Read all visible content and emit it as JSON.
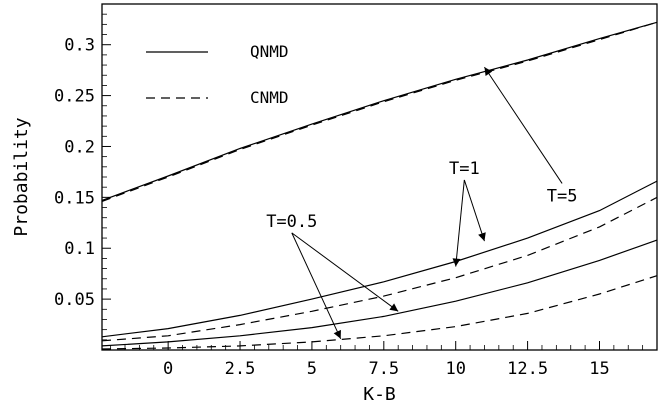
{
  "chart_data": {
    "type": "line",
    "title": "",
    "xlabel": "K-B",
    "ylabel": "Probability",
    "xlim": [
      -2.3,
      17
    ],
    "ylim": [
      0,
      0.34
    ],
    "x_ticks": [
      {
        "value": 0,
        "label": "0"
      },
      {
        "value": 2.5,
        "label": "2.5"
      },
      {
        "value": 5,
        "label": "5"
      },
      {
        "value": 7.5,
        "label": "7.5"
      },
      {
        "value": 10,
        "label": "10"
      },
      {
        "value": 12.5,
        "label": "12.5"
      },
      {
        "value": 15,
        "label": "15"
      }
    ],
    "y_ticks": [
      {
        "value": 0.05,
        "label": "0.05"
      },
      {
        "value": 0.1,
        "label": "0.1"
      },
      {
        "value": 0.15,
        "label": "0.15"
      },
      {
        "value": 0.2,
        "label": "0.2"
      },
      {
        "value": 0.25,
        "label": "0.25"
      },
      {
        "value": 0.3,
        "label": "0.3"
      }
    ],
    "grid": false,
    "legend": {
      "position": "top-left",
      "entries": [
        {
          "label": "QNMD",
          "style": "solid"
        },
        {
          "label": "CNMD",
          "style": "dashed"
        }
      ]
    },
    "series": [
      {
        "model": "QNMD",
        "temperature": "T=5",
        "style": "solid",
        "x": [
          -2.3,
          0,
          2.5,
          5,
          7.5,
          10,
          12.5,
          15,
          17
        ],
        "y": [
          0.147,
          0.171,
          0.198,
          0.222,
          0.245,
          0.266,
          0.285,
          0.306,
          0.322
        ]
      },
      {
        "model": "CNMD",
        "temperature": "T=5",
        "style": "dashed",
        "x": [
          -2.3,
          0,
          2.5,
          5,
          7.5,
          10,
          12.5,
          15,
          17
        ],
        "y": [
          0.146,
          0.17,
          0.197,
          0.221,
          0.244,
          0.265,
          0.284,
          0.305,
          0.322
        ]
      },
      {
        "model": "QNMD",
        "temperature": "T=1",
        "style": "solid",
        "x": [
          -2.3,
          0,
          2.5,
          5,
          7.5,
          10,
          12.5,
          15,
          17
        ],
        "y": [
          0.013,
          0.021,
          0.034,
          0.05,
          0.067,
          0.087,
          0.11,
          0.137,
          0.166
        ]
      },
      {
        "model": "CNMD",
        "temperature": "T=1",
        "style": "dashed",
        "x": [
          -2.3,
          0,
          2.5,
          5,
          7.5,
          10,
          12.5,
          15,
          17
        ],
        "y": [
          0.009,
          0.014,
          0.025,
          0.038,
          0.053,
          0.071,
          0.093,
          0.121,
          0.15
        ]
      },
      {
        "model": "QNMD",
        "temperature": "T=0.5",
        "style": "solid",
        "x": [
          -2.3,
          0,
          2.5,
          5,
          7.5,
          10,
          12.5,
          15,
          17
        ],
        "y": [
          0.004,
          0.008,
          0.014,
          0.022,
          0.033,
          0.048,
          0.066,
          0.088,
          0.108
        ]
      },
      {
        "model": "CNMD",
        "temperature": "T=0.5",
        "style": "dashed",
        "x": [
          -2.3,
          0,
          2.5,
          5,
          7.5,
          10,
          12.5,
          15,
          17
        ],
        "y": [
          0.001,
          0.002,
          0.004,
          0.008,
          0.014,
          0.023,
          0.036,
          0.055,
          0.073
        ]
      }
    ],
    "annotations": [
      {
        "text": "T=5",
        "label_at": [
          13.7,
          0.146
        ],
        "arrow_to": [
          [
            11.0,
            0.278
          ]
        ]
      },
      {
        "text": "T=1",
        "label_at": [
          10.3,
          0.173
        ],
        "arrow_to": [
          [
            11.0,
            0.107
          ],
          [
            10.0,
            0.082
          ]
        ]
      },
      {
        "text": "T=0.5",
        "label_at": [
          4.3,
          0.121
        ],
        "arrow_to": [
          [
            8.0,
            0.038
          ],
          [
            6.0,
            0.011
          ]
        ]
      }
    ]
  }
}
